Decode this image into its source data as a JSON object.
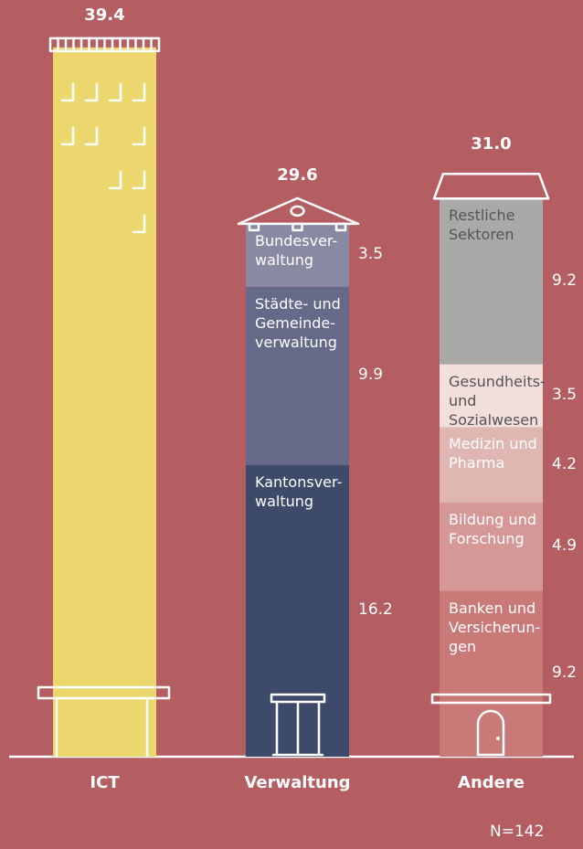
{
  "chart_data": {
    "type": "stacked-bar",
    "ylim": [
      0,
      40
    ],
    "note": "N=142",
    "bars": [
      {
        "category": "ICT",
        "total": 39.4,
        "segments": [
          {
            "value": 39.4,
            "color": "#ecd76e"
          }
        ]
      },
      {
        "category": "Verwaltung",
        "total": 29.6,
        "segments": [
          {
            "name": "Kantonsver-\nwaltung",
            "value": 16.2,
            "color": "#3d4a6a"
          },
          {
            "name": "Städte- und\nGemeinde-\nverwaltung",
            "value": 9.9,
            "color": "#646a88"
          },
          {
            "name": "Bundesver-\nwaltung",
            "value": 3.5,
            "color": "#8a89a3"
          }
        ]
      },
      {
        "category": "Andere",
        "total": 31.0,
        "total_label": "31.0",
        "segments": [
          {
            "name": "Banken und\nVersicherun-\ngen",
            "value": 9.2,
            "color": "#c97a78"
          },
          {
            "name": "Bildung und\nForschung",
            "value": 4.9,
            "color": "#d59896"
          },
          {
            "name": "Medizin und\nPharma",
            "value": 4.2,
            "color": "#e0b6b3"
          },
          {
            "name": "Gesundheits-\nund\nSozialwesen",
            "value": 3.5,
            "color": "#f2dedb"
          },
          {
            "name": "Restliche\nSektoren",
            "value": 9.2,
            "color": "#a9a9a8"
          }
        ]
      }
    ]
  }
}
